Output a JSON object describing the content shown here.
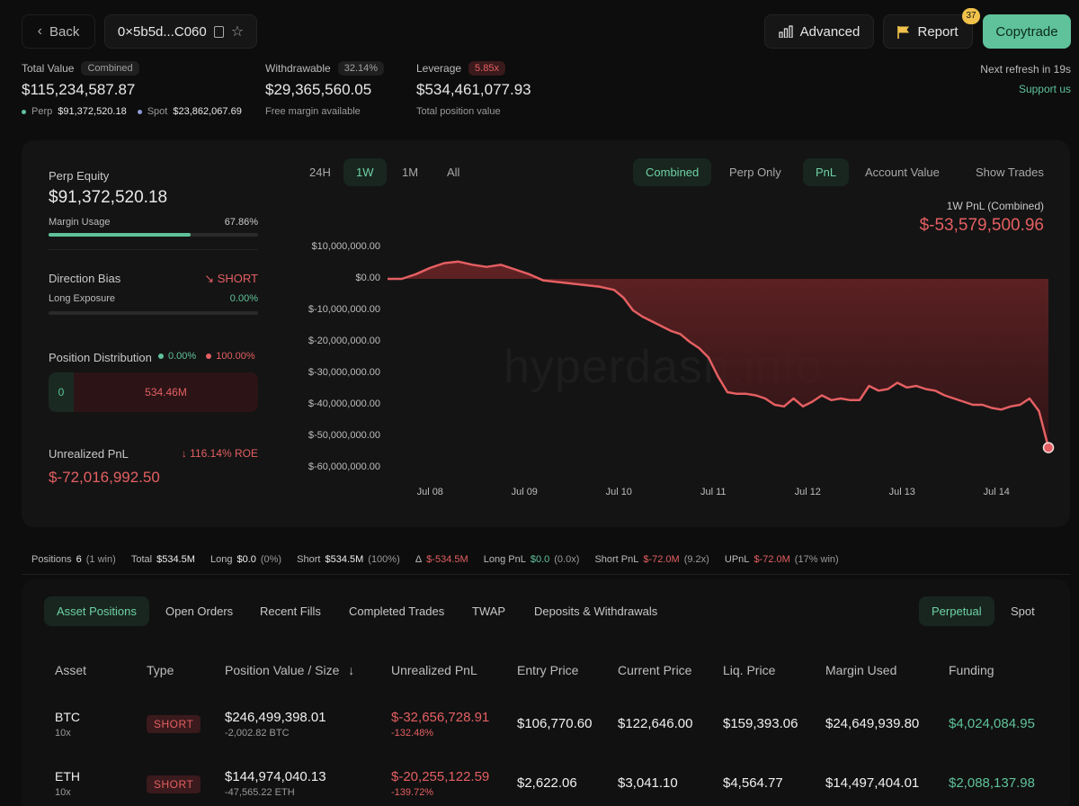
{
  "header": {
    "back_label": "Back",
    "address": "0×5b5d...C060",
    "advanced_label": "Advanced",
    "report_label": "Report",
    "report_badge": "37",
    "copytrade_label": "Copytrade",
    "refresh_text": "Next refresh in 19s",
    "support_label": "Support us"
  },
  "summary": {
    "total_value_label": "Total Value",
    "total_value_tag": "Combined",
    "total_value": "$115,234,587.87",
    "perp_label": "Perp",
    "perp_value": "$91,372,520.18",
    "spot_label": "Spot",
    "spot_value": "$23,862,067.69",
    "withdrawable_label": "Withdrawable",
    "withdrawable_tag": "32.14%",
    "withdrawable_value": "$29,365,560.05",
    "withdrawable_sub": "Free margin available",
    "leverage_label": "Leverage",
    "leverage_tag": "5.85x",
    "leverage_value": "$534,461,077.93",
    "leverage_sub": "Total position value"
  },
  "left_panel": {
    "perp_equity_label": "Perp Equity",
    "perp_equity_value": "$91,372,520.18",
    "margin_usage_label": "Margin Usage",
    "margin_usage_value": "67.86%",
    "margin_usage_fraction": 0.6786,
    "direction_bias_label": "Direction Bias",
    "direction_bias_value": "SHORT",
    "long_exposure_label": "Long Exposure",
    "long_exposure_value": "0.00%",
    "position_distribution_label": "Position Distribution",
    "dist_long_pct": "0.00%",
    "dist_short_pct": "100.00%",
    "dist_long_value": "0",
    "dist_short_value": "534.46M",
    "unrealized_pnl_label": "Unrealized PnL",
    "roe_value": "116.14% ROE",
    "unrealized_pnl_value": "$-72,016,992.50"
  },
  "chart_controls": {
    "ranges": [
      "24H",
      "1W",
      "1M",
      "All"
    ],
    "active_range": "1W",
    "scope": [
      "Combined",
      "Perp Only"
    ],
    "metric": [
      "PnL",
      "Account Value"
    ],
    "show_trades_label": "Show Trades",
    "pnl_title": "1W PnL (Combined)",
    "pnl_value": "$-53,579,500.96",
    "watermark": "hyperdash.info"
  },
  "chart_data": {
    "type": "area",
    "title": "1W PnL (Combined)",
    "y_ticks": [
      "$10,000,000.00",
      "$0.00",
      "$-10,000,000.00",
      "$-20,000,000.00",
      "$-30,000,000.00",
      "$-40,000,000.00",
      "$-50,000,000.00",
      "$-60,000,000.00"
    ],
    "ylim": [
      -60000000,
      10000000
    ],
    "x_ticks": [
      "Jul 08",
      "Jul 09",
      "Jul 10",
      "Jul 11",
      "Jul 12",
      "Jul 13",
      "Jul 14"
    ],
    "xlim": [
      0,
      7.0
    ],
    "x_tick_positions": [
      0.45,
      1.45,
      2.45,
      3.45,
      4.45,
      5.45,
      6.45
    ],
    "series": [
      {
        "color": "#e45f62",
        "x": [
          0.0,
          0.15,
          0.3,
          0.45,
          0.6,
          0.75,
          0.9,
          1.05,
          1.2,
          1.35,
          1.5,
          1.65,
          1.8,
          1.95,
          2.1,
          2.25,
          2.4,
          2.5,
          2.6,
          2.7,
          2.8,
          2.9,
          3.0,
          3.1,
          3.2,
          3.3,
          3.4,
          3.5,
          3.6,
          3.7,
          3.8,
          3.9,
          4.0,
          4.1,
          4.2,
          4.3,
          4.4,
          4.5,
          4.6,
          4.7,
          4.8,
          4.9,
          5.0,
          5.1,
          5.2,
          5.3,
          5.4,
          5.5,
          5.6,
          5.7,
          5.8,
          5.9,
          6.0,
          6.1,
          6.2,
          6.3,
          6.4,
          6.5,
          6.6,
          6.7,
          6.8,
          6.9,
          7.0
        ],
        "y": [
          0,
          0,
          1500000,
          3500000,
          5000000,
          5500000,
          4500000,
          3800000,
          4500000,
          3000000,
          1500000,
          -500000,
          -1000000,
          -1500000,
          -2000000,
          -2500000,
          -3500000,
          -6000000,
          -10000000,
          -12000000,
          -13500000,
          -15000000,
          -16500000,
          -17500000,
          -20000000,
          -22000000,
          -25000000,
          -31000000,
          -36000000,
          -36500000,
          -36500000,
          -37000000,
          -38000000,
          -40000000,
          -40500000,
          -38000000,
          -40500000,
          -39000000,
          -37000000,
          -38500000,
          -38000000,
          -38500000,
          -38500000,
          -34000000,
          -35500000,
          -35000000,
          -33000000,
          -34500000,
          -34000000,
          -35000000,
          -35500000,
          -37000000,
          -38000000,
          -39000000,
          -40000000,
          -40000000,
          -41000000,
          -41500000,
          -40500000,
          -40000000,
          -38000000,
          -42000000,
          -53600000
        ]
      }
    ]
  },
  "stats_bar": {
    "positions_label": "Positions",
    "positions_value": "6",
    "positions_sub": "(1 win)",
    "total_label": "Total",
    "total_value": "$534.5M",
    "long_label": "Long",
    "long_value": "$0.0",
    "long_sub": "(0%)",
    "short_label": "Short",
    "short_value": "$534.5M",
    "short_sub": "(100%)",
    "delta_label": "Δ",
    "delta_value": "$-534.5M",
    "long_pnl_label": "Long PnL",
    "long_pnl_value": "$0.0",
    "long_pnl_sub": "(0.0x)",
    "short_pnl_label": "Short PnL",
    "short_pnl_value": "$-72.0M",
    "short_pnl_sub": "(9.2x)",
    "upnl_label": "UPnL",
    "upnl_value": "$-72.0M",
    "upnl_sub": "(17% win)"
  },
  "tabs": {
    "items": [
      "Asset Positions",
      "Open Orders",
      "Recent Fills",
      "Completed Trades",
      "TWAP",
      "Deposits & Withdrawals"
    ],
    "active": "Asset Positions",
    "market": [
      "Perpetual",
      "Spot"
    ],
    "active_market": "Perpetual"
  },
  "table": {
    "columns": [
      "Asset",
      "Type",
      "Position Value / Size",
      "Unrealized PnL",
      "Entry Price",
      "Current Price",
      "Liq. Price",
      "Margin Used",
      "Funding"
    ],
    "rows": [
      {
        "asset": "BTC",
        "leverage": "10x",
        "type": "SHORT",
        "value": "$246,499,398.01",
        "size": "-2,002.82 BTC",
        "upnl": "$-32,656,728.91",
        "upnl_pct": "-132.48%",
        "entry": "$106,770.60",
        "current": "$122,646.00",
        "liq": "$159,393.06",
        "margin": "$24,649,939.80",
        "funding": "$4,024,084.95"
      },
      {
        "asset": "ETH",
        "leverage": "10x",
        "type": "SHORT",
        "value": "$144,974,040.13",
        "size": "-47,565.22 ETH",
        "upnl": "$-20,255,122.59",
        "upnl_pct": "-139.72%",
        "entry": "$2,622.06",
        "current": "$3,041.10",
        "liq": "$4,564.77",
        "margin": "$14,497,404.01",
        "funding": "$2,088,137.98"
      }
    ]
  }
}
